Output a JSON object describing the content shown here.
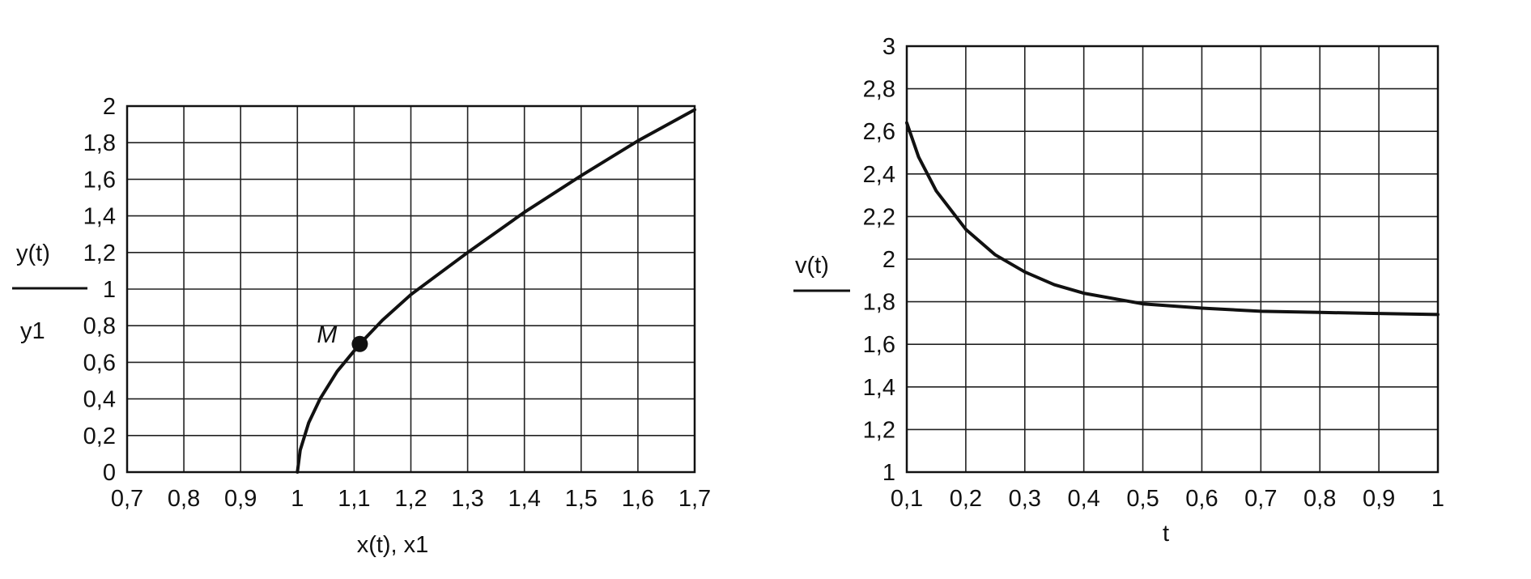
{
  "chart_data": [
    {
      "type": "line",
      "xlabel": "x(t), x1",
      "ylabel_top": "y(t)",
      "ylabel_bottom": "y1",
      "xlim": [
        0.7,
        1.7
      ],
      "ylim": [
        0,
        2
      ],
      "x_ticks": [
        "0,7",
        "0,8",
        "0,9",
        "1",
        "1,1",
        "1,2",
        "1,3",
        "1,4",
        "1,5",
        "1,6",
        "1,7"
      ],
      "x_tick_values": [
        0.7,
        0.8,
        0.9,
        1.0,
        1.1,
        1.2,
        1.3,
        1.4,
        1.5,
        1.6,
        1.7
      ],
      "y_ticks": [
        "0",
        "0,2",
        "0,4",
        "0,6",
        "0,8",
        "1",
        "1,2",
        "1,4",
        "1,6",
        "1,8",
        "2"
      ],
      "y_tick_values": [
        0,
        0.2,
        0.4,
        0.6,
        0.8,
        1.0,
        1.2,
        1.4,
        1.6,
        1.8,
        2.0
      ],
      "grid": true,
      "series": [
        {
          "x": [
            1.0,
            1.005,
            1.02,
            1.04,
            1.07,
            1.11,
            1.15,
            1.2,
            1.3,
            1.4,
            1.5,
            1.6,
            1.7
          ],
          "y": [
            0.0,
            0.12,
            0.27,
            0.4,
            0.55,
            0.7,
            0.83,
            0.97,
            1.2,
            1.42,
            1.62,
            1.81,
            1.98
          ]
        }
      ],
      "annotations": [
        {
          "text": "M",
          "x": 1.11,
          "y": 0.7
        }
      ]
    },
    {
      "type": "line",
      "xlabel": "t",
      "ylabel_top": "v(t)",
      "xlim": [
        0.1,
        1.0
      ],
      "ylim": [
        1.0,
        3.0
      ],
      "x_ticks": [
        "0,1",
        "0,2",
        "0,3",
        "0,4",
        "0,5",
        "0,6",
        "0,7",
        "0,8",
        "0,9",
        "1"
      ],
      "x_tick_values": [
        0.1,
        0.2,
        0.3,
        0.4,
        0.5,
        0.6,
        0.7,
        0.8,
        0.9,
        1.0
      ],
      "y_ticks": [
        "1",
        "1,2",
        "1,4",
        "1,6",
        "1,8",
        "2",
        "2,2",
        "2,4",
        "2,6",
        "2,8",
        "3"
      ],
      "y_tick_values": [
        1.0,
        1.2,
        1.4,
        1.6,
        1.8,
        2.0,
        2.2,
        2.4,
        2.6,
        2.8,
        3.0
      ],
      "grid": true,
      "series": [
        {
          "x": [
            0.1,
            0.12,
            0.15,
            0.2,
            0.25,
            0.3,
            0.35,
            0.4,
            0.5,
            0.6,
            0.7,
            0.8,
            0.9,
            1.0
          ],
          "y": [
            2.64,
            2.48,
            2.32,
            2.14,
            2.02,
            1.94,
            1.88,
            1.84,
            1.79,
            1.77,
            1.755,
            1.75,
            1.745,
            1.74
          ]
        }
      ]
    }
  ]
}
